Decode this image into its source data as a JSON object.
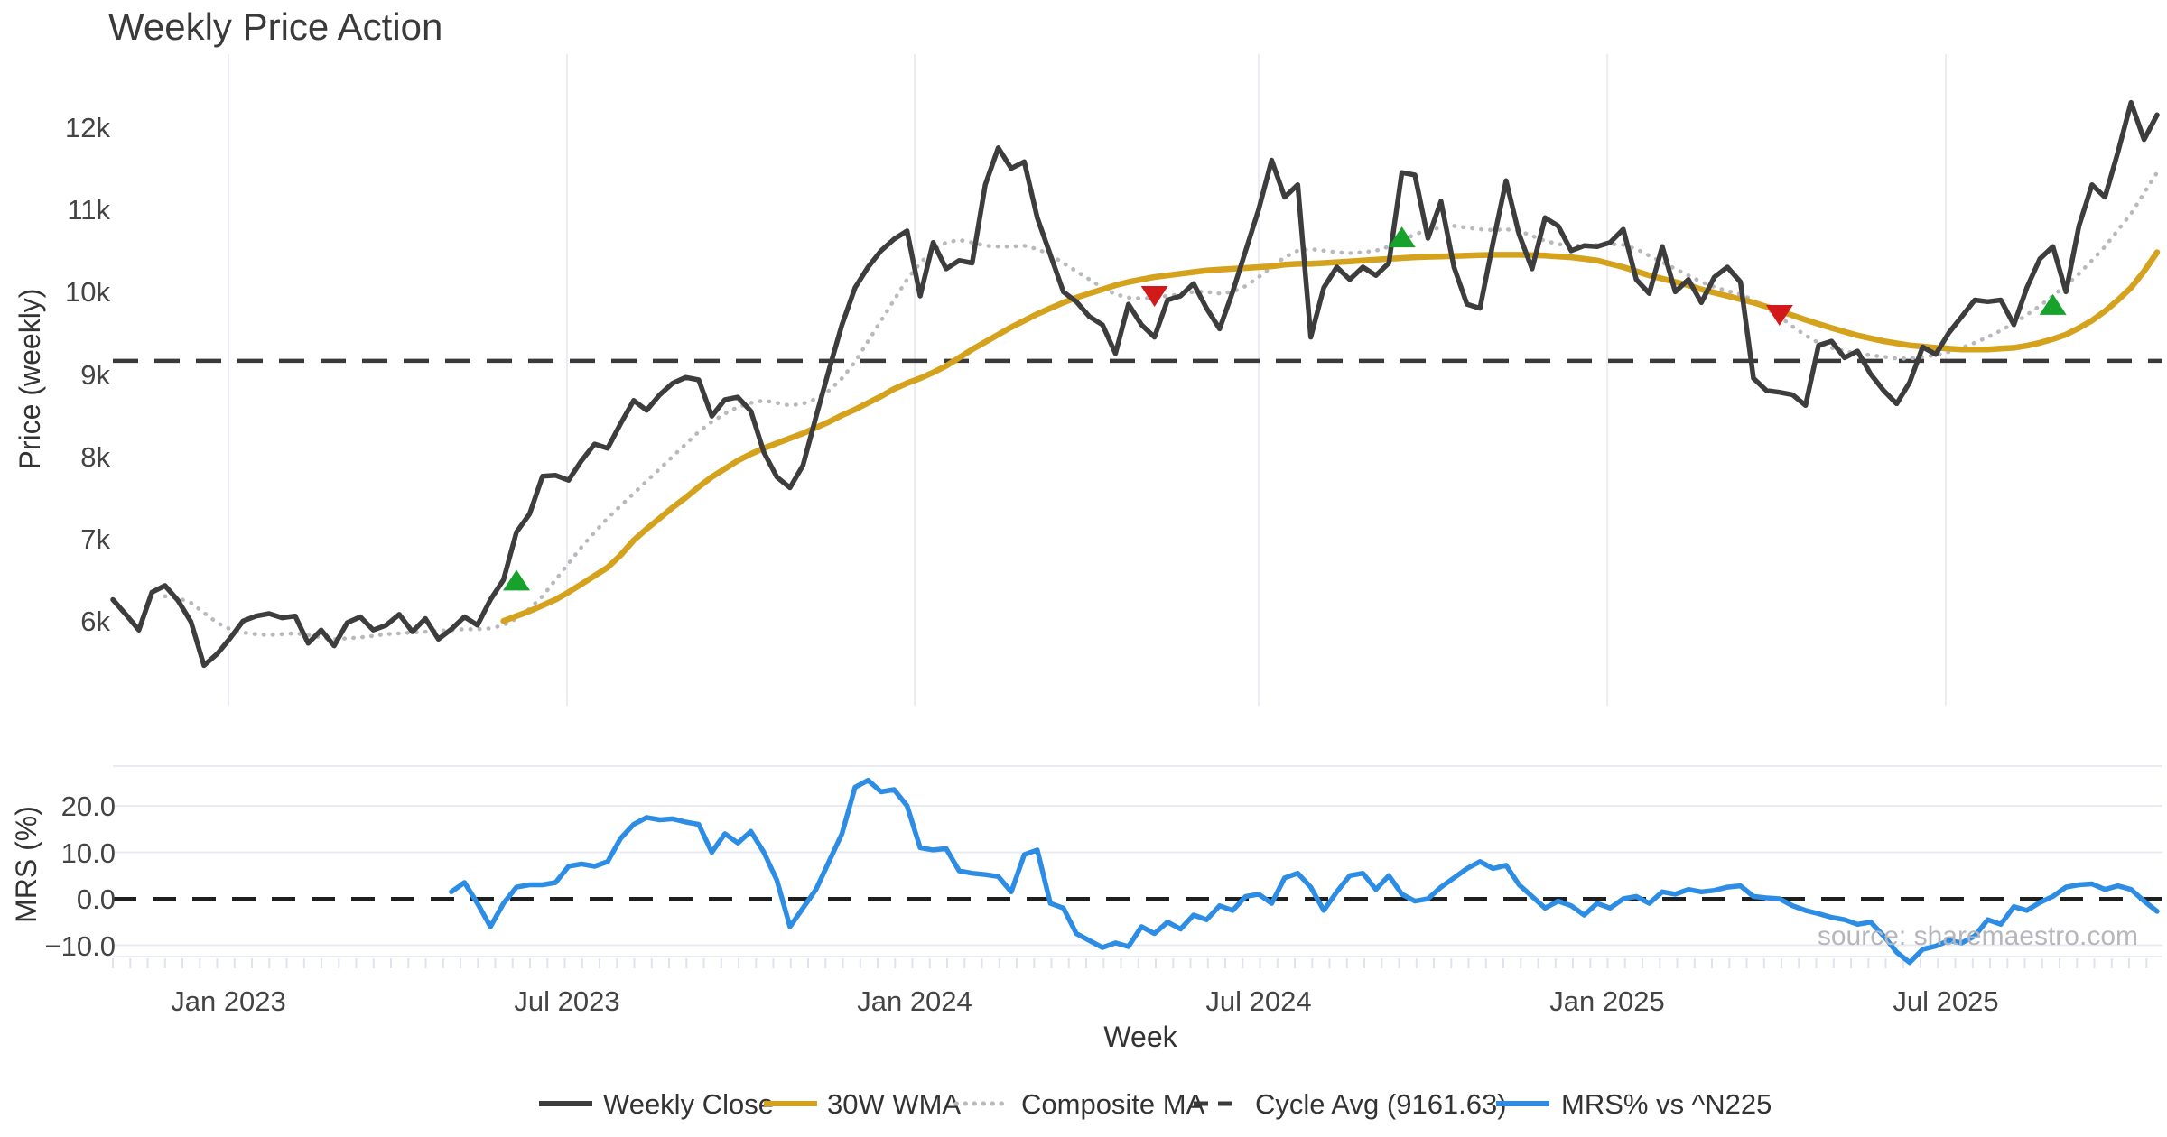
{
  "title": "Weekly Price Action",
  "watermark": "source: sharemaestro.com",
  "chart_data": {
    "type": "line",
    "title": "Weekly Price Action",
    "grid": true,
    "legend_position": "bottom-center",
    "x_axis": {
      "title": "Week",
      "ticks": [
        {
          "label": "Jan 2023",
          "pos": 8.88
        },
        {
          "label": "Jul 2023",
          "pos": 34.88
        },
        {
          "label": "Jan 2024",
          "pos": 61.58
        },
        {
          "label": "Jul 2024",
          "pos": 88.0
        },
        {
          "label": "Jan 2025",
          "pos": 114.78
        },
        {
          "label": "Jul 2025",
          "pos": 140.78
        }
      ]
    },
    "price_panel": {
      "y_title": "Price (weekly)",
      "ylim": [
        5300,
        12900
      ],
      "cycle_avg": 9161.63,
      "y_ticks": [
        {
          "label": "12k",
          "value": 12000
        },
        {
          "label": "11k",
          "value": 11000
        },
        {
          "label": "10k",
          "value": 10000
        },
        {
          "label": "9k",
          "value": 9000
        },
        {
          "label": "8k",
          "value": 8000
        },
        {
          "label": "7k",
          "value": 7000
        },
        {
          "label": "6k",
          "value": 6000
        }
      ],
      "series": [
        {
          "id": "composite_ma",
          "name": "Composite MA",
          "color": "#b9b9bd",
          "width": 4.5,
          "dash": "0.5 9.5",
          "start_week": 5,
          "values": [
            6300,
            6280,
            6220,
            6100,
            5980,
            5900,
            5860,
            5840,
            5830,
            5840,
            5850,
            5830,
            5800,
            5780,
            5790,
            5800,
            5820,
            5840,
            5850,
            5860,
            5870,
            5880,
            5890,
            5900,
            5900,
            5910,
            5950,
            6030,
            6150,
            6300,
            6500,
            6700,
            6900,
            7080,
            7250,
            7400,
            7550,
            7700,
            7850,
            8000,
            8150,
            8300,
            8420,
            8520,
            8600,
            8650,
            8680,
            8650,
            8620,
            8640,
            8700,
            8800,
            8950,
            9150,
            9400,
            9650,
            9900,
            10150,
            10350,
            10500,
            10600,
            10630,
            10600,
            10560,
            10550,
            10550,
            10560,
            10520,
            10450,
            10350,
            10250,
            10150,
            10050,
            9970,
            9930,
            9920,
            9930,
            9950,
            9970,
            10000,
            10000,
            9980,
            10000,
            10070,
            10180,
            10300,
            10420,
            10500,
            10520,
            10500,
            10480,
            10470,
            10480,
            10500,
            10550,
            10620,
            10700,
            10750,
            10780,
            10800,
            10780,
            10760,
            10750,
            10760,
            10740,
            10680,
            10620,
            10580,
            10560,
            10560,
            10570,
            10580,
            10570,
            10520,
            10440,
            10360,
            10280,
            10200,
            10120,
            10060,
            10010,
            9970,
            9900,
            9800,
            9700,
            9580,
            9470,
            9380,
            9320,
            9280,
            9250,
            9230,
            9210,
            9190,
            9190,
            9210,
            9230,
            9270,
            9320,
            9380,
            9450,
            9530,
            9620,
            9720,
            9830,
            9950,
            10080,
            10220,
            10380,
            10550,
            10750,
            10950,
            11200,
            11450
          ]
        },
        {
          "id": "wma_30w",
          "name": "30W WMA",
          "color": "#d4a21c",
          "width": 6.5,
          "dash": "",
          "start_week": 31,
          "values": [
            6000,
            6060,
            6120,
            6190,
            6260,
            6350,
            6450,
            6550,
            6650,
            6800,
            6980,
            7120,
            7250,
            7380,
            7500,
            7630,
            7750,
            7850,
            7950,
            8030,
            8100,
            8160,
            8220,
            8280,
            8350,
            8420,
            8500,
            8570,
            8650,
            8730,
            8820,
            8890,
            8950,
            9020,
            9100,
            9200,
            9300,
            9390,
            9480,
            9570,
            9650,
            9730,
            9800,
            9870,
            9930,
            9980,
            10030,
            10080,
            10120,
            10150,
            10180,
            10200,
            10220,
            10240,
            10260,
            10270,
            10280,
            10290,
            10300,
            10310,
            10330,
            10340,
            10340,
            10350,
            10360,
            10370,
            10380,
            10390,
            10400,
            10410,
            10420,
            10425,
            10430,
            10435,
            10440,
            10445,
            10450,
            10450,
            10450,
            10445,
            10440,
            10430,
            10420,
            10400,
            10380,
            10340,
            10300,
            10250,
            10200,
            10160,
            10120,
            10080,
            10030,
            9990,
            9950,
            9910,
            9870,
            9820,
            9770,
            9715,
            9660,
            9610,
            9560,
            9515,
            9470,
            9435,
            9400,
            9375,
            9350,
            9335,
            9320,
            9310,
            9300,
            9300,
            9300,
            9310,
            9320,
            9345,
            9380,
            9425,
            9480,
            9560,
            9650,
            9765,
            9900,
            10050,
            10250,
            10480
          ]
        },
        {
          "id": "weekly_close",
          "name": "Weekly Close",
          "color": "#3d3d3d",
          "width": 5.5,
          "dash": "",
          "start_week": 1,
          "values": [
            6260,
            6080,
            5890,
            6350,
            6430,
            6250,
            5990,
            5460,
            5600,
            5790,
            6000,
            6060,
            6090,
            6040,
            6060,
            5730,
            5890,
            5700,
            5980,
            6050,
            5890,
            5950,
            6080,
            5870,
            6030,
            5780,
            5900,
            6050,
            5950,
            6260,
            6500,
            7080,
            7300,
            7760,
            7770,
            7710,
            7950,
            8150,
            8100,
            8400,
            8680,
            8560,
            8750,
            8890,
            8960,
            8930,
            8490,
            8690,
            8720,
            8550,
            8050,
            7750,
            7620,
            7890,
            8480,
            9050,
            9600,
            10050,
            10300,
            10500,
            10640,
            10740,
            9950,
            10600,
            10280,
            10380,
            10350,
            11300,
            11750,
            11500,
            11580,
            10900,
            10450,
            10000,
            9880,
            9700,
            9600,
            9250,
            9850,
            9600,
            9450,
            9900,
            9950,
            10100,
            9800,
            9550,
            10000,
            10500,
            11000,
            11600,
            11150,
            11300,
            9450,
            10050,
            10300,
            10150,
            10300,
            10200,
            10350,
            11450,
            11420,
            10650,
            11100,
            10300,
            9850,
            9800,
            10600,
            11350,
            10700,
            10280,
            10900,
            10800,
            10500,
            10560,
            10550,
            10600,
            10760,
            10150,
            9980,
            10550,
            10000,
            10150,
            9870,
            10180,
            10300,
            10120,
            8950,
            8800,
            8780,
            8750,
            8620,
            9350,
            9400,
            9200,
            9280,
            9000,
            8800,
            8640,
            8900,
            9330,
            9240,
            9500,
            9700,
            9900,
            9880,
            9900,
            9600,
            10050,
            10400,
            10550,
            10000,
            10800,
            11300,
            11150,
            11700,
            12300,
            11850,
            12150
          ]
        }
      ],
      "signals": [
        {
          "type": "buy",
          "week": 32,
          "price": 6480
        },
        {
          "type": "sell",
          "week": 81,
          "price": 9960
        },
        {
          "type": "buy",
          "week": 100,
          "price": 10650
        },
        {
          "type": "sell",
          "week": 129,
          "price": 9730
        },
        {
          "type": "buy",
          "week": 150,
          "price": 9830
        }
      ],
      "signal_colors": {
        "buy": "#17a22b",
        "sell": "#d31a1a"
      }
    },
    "mrs_panel": {
      "y_title": "MRS (%)",
      "ylim": [
        -14.5,
        28.5
      ],
      "zero_line": 0,
      "y_ticks": [
        {
          "label": "20.0",
          "value": 20
        },
        {
          "label": "10.0",
          "value": 10
        },
        {
          "label": "0.0",
          "value": 0
        },
        {
          "label": "−10.0",
          "value": -10
        }
      ],
      "series": [
        {
          "id": "mrs",
          "name": "MRS% vs ^N225",
          "color": "#2d8de4",
          "width": 5.5,
          "dash": "",
          "start_week": 27,
          "values": [
            1.5,
            3.5,
            -1.0,
            -6.0,
            -1.0,
            2.5,
            3.0,
            3.0,
            3.5,
            7.0,
            7.5,
            7.0,
            8.0,
            13.0,
            16.0,
            17.5,
            17.0,
            17.2,
            16.5,
            16.0,
            10.0,
            14.0,
            12.0,
            14.5,
            10.0,
            4.0,
            -6.0,
            -2.0,
            2.0,
            8.0,
            14.0,
            24.0,
            25.5,
            23.0,
            23.5,
            20.0,
            11.0,
            10.5,
            10.8,
            6.0,
            5.5,
            5.2,
            4.8,
            1.5,
            9.5,
            10.5,
            -1.0,
            -2.0,
            -7.5,
            -9.0,
            -10.5,
            -9.5,
            -10.3,
            -6.0,
            -7.5,
            -5.0,
            -6.5,
            -3.5,
            -4.5,
            -1.5,
            -2.5,
            0.5,
            1.0,
            -1.0,
            4.5,
            5.5,
            2.5,
            -2.5,
            1.5,
            5.0,
            5.5,
            2.0,
            5.0,
            1.0,
            -0.5,
            0.0,
            2.5,
            4.5,
            6.5,
            8.0,
            6.5,
            7.2,
            3.0,
            0.5,
            -2.0,
            -0.5,
            -1.5,
            -3.5,
            -1.0,
            -2.0,
            0.0,
            0.5,
            -1.0,
            1.5,
            1.0,
            2.0,
            1.5,
            1.8,
            2.5,
            2.8,
            0.5,
            0.2,
            0.0,
            -1.5,
            -2.5,
            -3.2,
            -4.0,
            -4.5,
            -5.5,
            -5.0,
            -8.0,
            -11.5,
            -13.7,
            -10.9,
            -10.2,
            -9.0,
            -9.5,
            -8.0,
            -4.5,
            -5.5,
            -1.7,
            -2.5,
            -0.8,
            0.5,
            2.5,
            3.0,
            3.2,
            2.0,
            2.8,
            2.0,
            -0.5,
            -2.7
          ]
        }
      ]
    },
    "legend": [
      {
        "label": "Weekly Close",
        "swatch": "solid-dark-line"
      },
      {
        "label": "30W WMA",
        "swatch": "solid-gold-line"
      },
      {
        "label": "Composite MA",
        "swatch": "dotted-gray-line"
      },
      {
        "label": "Cycle Avg (9161.63)",
        "swatch": "dashed-dark-line"
      },
      {
        "label": "MRS% vs ^N225",
        "swatch": "solid-blue-line"
      }
    ]
  }
}
